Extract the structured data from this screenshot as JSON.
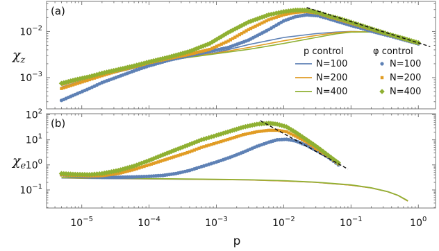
{
  "chart_data": [
    {
      "type": "scatter",
      "panel_label": "(a)",
      "ylabel": "χ",
      "ylabel_sub": "z",
      "xlabel": "",
      "x_scale": "log",
      "y_scale": "log",
      "xlim": [
        3e-06,
        1.8
      ],
      "ylim": [
        0.00021,
        0.045
      ],
      "xticks": [
        {
          "base": "10",
          "exp": "−5",
          "value": 1e-05
        },
        {
          "base": "10",
          "exp": "−4",
          "value": 0.0001
        },
        {
          "base": "10",
          "exp": "−3",
          "value": 0.001
        },
        {
          "base": "10",
          "exp": "−2",
          "value": 0.01
        },
        {
          "base": "10",
          "exp": "−1",
          "value": 0.1
        },
        {
          "base": "10",
          "exp": "0",
          "value": 1
        }
      ],
      "yticks": [
        {
          "base": "10",
          "exp": "−3",
          "value": 0.001
        },
        {
          "base": "10",
          "exp": "−2",
          "value": 0.01
        }
      ],
      "legend": {
        "placement": "bottom-right",
        "p_control_title": "p control",
        "phi_control_title": "φ control",
        "entries": [
          "N=100",
          "N=200",
          "N=400"
        ]
      },
      "series": [
        {
          "name": "N=100",
          "control": "p",
          "style": "line",
          "color": "#5e81b5",
          "x": [
            5e-06,
            1e-05,
            3e-05,
            0.0001,
            0.0003,
            0.001,
            0.003,
            0.01,
            0.03,
            0.06,
            0.1,
            0.2,
            0.4,
            0.7
          ],
          "y": [
            0.00062,
            0.00085,
            0.00125,
            0.0019,
            0.0026,
            0.0035,
            0.0052,
            0.0074,
            0.009,
            0.0097,
            0.01,
            0.0097,
            0.0085,
            0.0068
          ]
        },
        {
          "name": "N=200",
          "control": "p",
          "style": "line",
          "color": "#e19c24",
          "x": [
            5e-06,
            1e-05,
            3e-05,
            0.0001,
            0.0003,
            0.001,
            0.003,
            0.01,
            0.03,
            0.06,
            0.1,
            0.2,
            0.4,
            0.7
          ],
          "y": [
            0.00067,
            0.0009,
            0.0013,
            0.00195,
            0.0026,
            0.0034,
            0.0045,
            0.0063,
            0.0082,
            0.0094,
            0.0099,
            0.0098,
            0.0087,
            0.007
          ]
        },
        {
          "name": "N=400",
          "control": "p",
          "style": "line",
          "color": "#8fb032",
          "x": [
            5e-06,
            1e-05,
            3e-05,
            0.0001,
            0.0003,
            0.001,
            0.003,
            0.01,
            0.03,
            0.06,
            0.1,
            0.2,
            0.4,
            0.7
          ],
          "y": [
            0.00072,
            0.00095,
            0.00135,
            0.002,
            0.0026,
            0.0033,
            0.0041,
            0.0055,
            0.0074,
            0.0089,
            0.0097,
            0.0098,
            0.0089,
            0.0072
          ]
        },
        {
          "name": "N=100",
          "control": "φ",
          "style": "circle",
          "color": "#5e81b5",
          "x": [
            5e-06,
            8e-06,
            1.3e-05,
            2e-05,
            3.5e-05,
            6e-05,
            0.0001,
            0.0002,
            0.0004,
            0.0008,
            0.0015,
            0.003,
            0.006,
            0.01,
            0.015,
            0.022,
            0.032,
            0.046,
            0.068,
            0.1,
            0.15,
            0.22,
            0.32,
            0.46,
            0.68,
            1.0
          ],
          "y": [
            0.00032,
            0.00043,
            0.00058,
            0.00078,
            0.00105,
            0.0014,
            0.0018,
            0.0024,
            0.003,
            0.0037,
            0.0045,
            0.0065,
            0.011,
            0.017,
            0.021,
            0.023,
            0.022,
            0.019,
            0.016,
            0.0135,
            0.0115,
            0.0098,
            0.0085,
            0.0074,
            0.0063,
            0.0054
          ]
        },
        {
          "name": "N=200",
          "control": "φ",
          "style": "square",
          "color": "#e19c24",
          "x": [
            5e-06,
            8e-06,
            1.3e-05,
            2e-05,
            3.5e-05,
            6e-05,
            0.0001,
            0.0002,
            0.0004,
            0.0008,
            0.0015,
            0.003,
            0.006,
            0.01,
            0.015,
            0.022,
            0.032,
            0.046,
            0.068,
            0.1,
            0.15,
            0.22,
            0.32,
            0.46,
            0.68,
            1.0
          ],
          "y": [
            0.00058,
            0.00072,
            0.0009,
            0.0011,
            0.0014,
            0.0017,
            0.0021,
            0.0026,
            0.0032,
            0.0041,
            0.0062,
            0.011,
            0.018,
            0.023,
            0.026,
            0.027,
            0.025,
            0.021,
            0.018,
            0.0152,
            0.0127,
            0.0107,
            0.0091,
            0.0078,
            0.0066,
            0.0056
          ]
        },
        {
          "name": "N=400",
          "control": "φ",
          "style": "diamond",
          "color": "#8fb032",
          "x": [
            5e-06,
            8e-06,
            1.3e-05,
            2e-05,
            3.5e-05,
            6e-05,
            0.0001,
            0.0002,
            0.0004,
            0.0008,
            0.0015,
            0.003,
            0.006,
            0.01,
            0.015,
            0.022,
            0.032,
            0.046,
            0.068,
            0.1,
            0.15,
            0.22,
            0.32,
            0.46,
            0.68,
            1.0
          ],
          "y": [
            0.00075,
            0.0009,
            0.00105,
            0.00125,
            0.0015,
            0.0018,
            0.0022,
            0.0028,
            0.0037,
            0.0055,
            0.0095,
            0.016,
            0.023,
            0.027,
            0.029,
            0.029,
            0.026,
            0.022,
            0.019,
            0.016,
            0.0132,
            0.011,
            0.0093,
            0.0079,
            0.0067,
            0.0057
          ]
        }
      ],
      "fit_line": {
        "style": "dashed",
        "color": "#111111",
        "x": [
          0.022,
          1.5
        ],
        "y": [
          0.033,
          0.0047
        ]
      }
    },
    {
      "type": "scatter",
      "panel_label": "(b)",
      "ylabel": "χ",
      "ylabel_sub": "e",
      "xlabel": "p",
      "x_scale": "log",
      "y_scale": "log",
      "xlim": [
        3e-06,
        1.8
      ],
      "ylim": [
        0.019,
        110
      ],
      "xticks": [
        {
          "base": "10",
          "exp": "−5",
          "value": 1e-05
        },
        {
          "base": "10",
          "exp": "−4",
          "value": 0.0001
        },
        {
          "base": "10",
          "exp": "−3",
          "value": 0.001
        },
        {
          "base": "10",
          "exp": "−2",
          "value": 0.01
        },
        {
          "base": "10",
          "exp": "−1",
          "value": 0.1
        },
        {
          "base": "10",
          "exp": "0",
          "value": 1
        }
      ],
      "yticks": [
        {
          "base": "10",
          "exp": "−1",
          "value": 0.1
        },
        {
          "base": "10",
          "exp": "0",
          "value": 1
        },
        {
          "base": "10",
          "exp": "1",
          "value": 10
        },
        {
          "base": "10",
          "exp": "2",
          "value": 100
        }
      ],
      "series": [
        {
          "name": "N=100",
          "control": "p",
          "style": "line",
          "color": "#5e81b5",
          "x": [
            5e-06,
            1e-05,
            0.0001,
            0.001,
            0.003,
            0.01,
            0.03,
            0.1,
            0.2,
            0.35,
            0.5,
            0.7
          ],
          "y": [
            0.3,
            0.29,
            0.275,
            0.26,
            0.25,
            0.23,
            0.2,
            0.155,
            0.12,
            0.085,
            0.06,
            0.036
          ]
        },
        {
          "name": "N=200",
          "control": "p",
          "style": "line",
          "color": "#e19c24",
          "x": [
            5e-06,
            1e-05,
            0.0001,
            0.001,
            0.003,
            0.01,
            0.03,
            0.1,
            0.2,
            0.35,
            0.5,
            0.7
          ],
          "y": [
            0.31,
            0.295,
            0.28,
            0.26,
            0.25,
            0.23,
            0.2,
            0.155,
            0.12,
            0.085,
            0.06,
            0.036
          ]
        },
        {
          "name": "N=400",
          "control": "p",
          "style": "line",
          "color": "#8fb032",
          "x": [
            5e-06,
            1e-05,
            0.0001,
            0.001,
            0.003,
            0.01,
            0.03,
            0.1,
            0.2,
            0.35,
            0.5,
            0.7
          ],
          "y": [
            0.315,
            0.3,
            0.285,
            0.265,
            0.255,
            0.235,
            0.205,
            0.16,
            0.122,
            0.086,
            0.061,
            0.037
          ]
        },
        {
          "name": "N=100",
          "control": "φ",
          "style": "circle",
          "color": "#5e81b5",
          "x": [
            5e-06,
            8e-06,
            1.3e-05,
            2e-05,
            3.5e-05,
            6e-05,
            0.0001,
            0.00016,
            0.00025,
            0.0004,
            0.0006,
            0.001,
            0.0016,
            0.0025,
            0.004,
            0.006,
            0.008,
            0.011,
            0.015,
            0.022,
            0.032,
            0.046,
            0.065
          ],
          "y": [
            0.4,
            0.36,
            0.33,
            0.32,
            0.32,
            0.33,
            0.35,
            0.38,
            0.45,
            0.6,
            0.85,
            1.3,
            2.0,
            3.2,
            5.5,
            8.0,
            10.0,
            10.5,
            9.0,
            6.0,
            3.5,
            2.0,
            1.0
          ]
        },
        {
          "name": "N=200",
          "control": "φ",
          "style": "square",
          "color": "#e19c24",
          "x": [
            5e-06,
            8e-06,
            1.3e-05,
            2e-05,
            3.5e-05,
            6e-05,
            0.0001,
            0.00016,
            0.00025,
            0.0004,
            0.0006,
            0.001,
            0.0016,
            0.0025,
            0.004,
            0.006,
            0.008,
            0.011,
            0.015,
            0.022,
            0.032,
            0.046,
            0.065
          ],
          "y": [
            0.4,
            0.38,
            0.36,
            0.37,
            0.45,
            0.65,
            1.0,
            1.5,
            2.2,
            3.3,
            5.0,
            7.5,
            11.0,
            16.0,
            21.0,
            24.0,
            24.0,
            21.0,
            14.0,
            8.0,
            4.0,
            2.2,
            1.1
          ]
        },
        {
          "name": "N=400",
          "control": "φ",
          "style": "diamond",
          "color": "#8fb032",
          "x": [
            5e-06,
            8e-06,
            1.3e-05,
            2e-05,
            3.5e-05,
            6e-05,
            0.0001,
            0.00016,
            0.00025,
            0.0004,
            0.0006,
            0.001,
            0.0016,
            0.0025,
            0.004,
            0.006,
            0.008,
            0.011,
            0.015,
            0.022,
            0.032,
            0.046,
            0.065
          ],
          "y": [
            0.45,
            0.42,
            0.41,
            0.45,
            0.6,
            0.9,
            1.5,
            2.5,
            4.0,
            6.5,
            10.0,
            15.0,
            22.0,
            32.0,
            42.0,
            46.0,
            42.0,
            33.0,
            20.0,
            10.0,
            5.0,
            2.4,
            1.2
          ]
        }
      ],
      "fit_line": {
        "style": "dashed",
        "color": "#111111",
        "x": [
          0.0045,
          0.09
        ],
        "y": [
          58,
          0.68
        ]
      }
    }
  ]
}
